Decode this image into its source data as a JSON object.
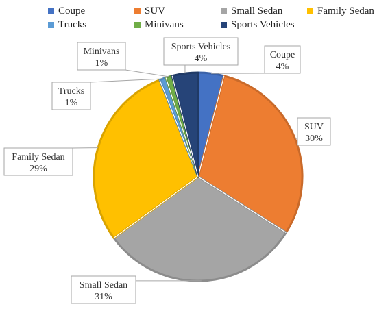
{
  "chart_data": {
    "type": "pie",
    "categories": [
      "Coupe",
      "SUV",
      "Small Sedan",
      "Family Sedan",
      "Trucks",
      "Minivans",
      "Sports Vehicles"
    ],
    "values": [
      4,
      30,
      31,
      29,
      1,
      1,
      4
    ],
    "labels": [
      "4%",
      "30%",
      "31%",
      "29%",
      "1%",
      "1%",
      "4%"
    ],
    "colors": [
      "#4472c4",
      "#ed7d31",
      "#a5a5a5",
      "#ffc000",
      "#5b9bd5",
      "#70ad47",
      "#264478"
    ],
    "legend": {
      "position": "top",
      "order": [
        "Coupe",
        "SUV",
        "Small Sedan",
        "Family Sedan",
        "Trucks",
        "Minivans",
        "Sports Vehicles"
      ]
    },
    "slice_order_clockwise_from_top": [
      "Coupe",
      "SUV",
      "Small Sedan",
      "Family Sedan",
      "Trucks",
      "Minivans",
      "Sports Vehicles"
    ]
  }
}
